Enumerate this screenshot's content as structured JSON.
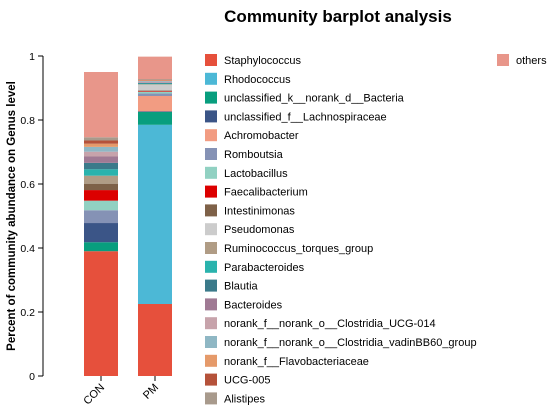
{
  "chart_data": {
    "type": "bar",
    "stacked": true,
    "title": "Community barplot analysis",
    "ylabel": "Percent of community abundance on Genus level",
    "xlabel": "",
    "ylim": [
      0,
      1
    ],
    "yticks": [
      "0",
      "0.2",
      "0.4",
      "0.6",
      "0.8",
      "1"
    ],
    "categories": [
      "CON",
      "PM"
    ],
    "legend_position": "right",
    "series": [
      {
        "name": "Staphylococcus",
        "color": "#e6503c",
        "values": [
          0.39,
          0.225
        ]
      },
      {
        "name": "Rhodococcus",
        "color": "#4cb8d6",
        "values": [
          0.0,
          0.56
        ]
      },
      {
        "name": "unclassified_k__norank_d__Bacteria",
        "color": "#089e7e",
        "values": [
          0.028,
          0.04
        ]
      },
      {
        "name": "unclassified_f__Lachnospiraceae",
        "color": "#3b5587",
        "values": [
          0.06,
          0.002
        ]
      },
      {
        "name": "Achromobacter",
        "color": "#f29c82",
        "values": [
          0.0,
          0.048
        ]
      },
      {
        "name": "Romboutsia",
        "color": "#8592b5",
        "values": [
          0.04,
          0.008
        ]
      },
      {
        "name": "Lactobacillus",
        "color": "#91d1c2",
        "values": [
          0.03,
          0.005
        ]
      },
      {
        "name": "Faecalibacterium",
        "color": "#dc0000",
        "values": [
          0.033,
          0.002
        ]
      },
      {
        "name": "Intestinimonas",
        "color": "#7e6148",
        "values": [
          0.02,
          0.002
        ]
      },
      {
        "name": "Pseudomonas",
        "color": "#cccccc",
        "values": [
          0.0,
          0.018
        ]
      },
      {
        "name": "Ruminococcus_torques_group",
        "color": "#b09c85",
        "values": [
          0.025,
          0.002
        ]
      },
      {
        "name": "Parabacteroides",
        "color": "#2ab3ad",
        "values": [
          0.02,
          0.002
        ]
      },
      {
        "name": "Blautia",
        "color": "#3b7a8a",
        "values": [
          0.02,
          0.002
        ]
      },
      {
        "name": "Bacteroides",
        "color": "#a07a94",
        "values": [
          0.02,
          0.002
        ]
      },
      {
        "name": "norank_f__norank_o__Clostridia_UCG-014",
        "color": "#c7a3ab",
        "values": [
          0.015,
          0.002
        ]
      },
      {
        "name": "norank_f__norank_o__Clostridia_vadinBB60_group",
        "color": "#8fb7c4",
        "values": [
          0.015,
          0.002
        ]
      },
      {
        "name": "norank_f__Flavobacteriaceae",
        "color": "#e59a6a",
        "values": [
          0.01,
          0.002
        ]
      },
      {
        "name": "UCG-005",
        "color": "#b5523a",
        "values": [
          0.01,
          0.002
        ]
      },
      {
        "name": "Alistipes",
        "color": "#a89a8c",
        "values": [
          0.01,
          0.002
        ]
      },
      {
        "name": "others",
        "color": "#e8968a",
        "values": [
          0.204,
          0.07
        ]
      }
    ]
  }
}
